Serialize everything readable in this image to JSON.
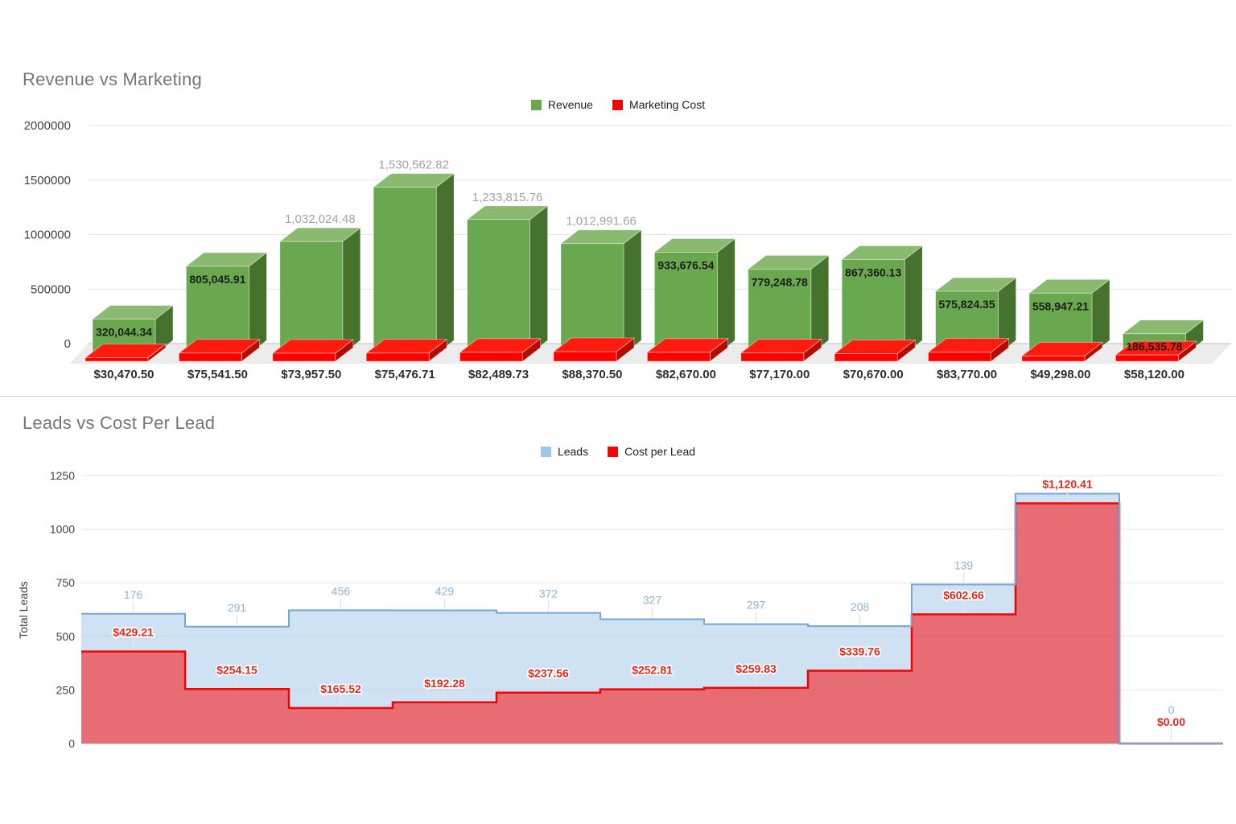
{
  "page_background": "#ffffff",
  "chart_data": [
    {
      "type": "bar",
      "variant": "3d-column",
      "title": "Revenue vs Marketing",
      "legend_position": "top-center",
      "grid": true,
      "ylim": [
        0,
        2000000
      ],
      "y_ticks": [
        "2000000",
        "1500000",
        "1000000",
        "500000",
        "0"
      ],
      "categories": [
        "$30,470.50",
        "$75,541.50",
        "$73,957.50",
        "$75,476.71",
        "$82,489.73",
        "$88,370.50",
        "$82,670.00",
        "$77,170.00",
        "$70,670.00",
        "$83,770.00",
        "$49,298.00",
        "$58,120.00"
      ],
      "series": [
        {
          "name": "Revenue",
          "color": "#6aa84f",
          "color_top": "#8ab970",
          "color_side": "#45722d",
          "values": [
            320044.34,
            805045.91,
            1032024.48,
            1530562.82,
            1233815.76,
            1012991.66,
            933676.54,
            779248.78,
            867360.13,
            575824.35,
            558947.21,
            186535.78
          ],
          "labels": [
            "320,044.34",
            "805,045.91",
            "1,032,024.48",
            "1,530,562.82",
            "1,233,815.76",
            "1,012,991.66",
            "933,676.54",
            "779,248.78",
            "867,360.13",
            "575,824.35",
            "558,947.21",
            "186,535.78"
          ]
        },
        {
          "name": "Marketing Cost",
          "color": "#ff0000",
          "color_top": "#ff1c0e",
          "color_side": "#b50c00",
          "values": [
            30470.5,
            75541.5,
            73957.5,
            75476.71,
            82489.73,
            88370.5,
            82670.0,
            77170.0,
            70670.0,
            83770.0,
            49298.0,
            58120.0
          ]
        }
      ]
    },
    {
      "type": "area",
      "variant": "stacked-step",
      "title": "Leads vs Cost Per Lead",
      "ylabel": "Total Leads",
      "legend_position": "top-center",
      "grid": true,
      "ylim": [
        0,
        1250
      ],
      "y_ticks": [
        "1250",
        "1000",
        "750",
        "500",
        "250",
        "0"
      ],
      "series": [
        {
          "name": "Leads",
          "color": "#9fc5e8",
          "line_color": "#76a5d6",
          "label_color": "#8fb1d6",
          "values": [
            176,
            291,
            456,
            429,
            372,
            327,
            297,
            208,
            139,
            45,
            0
          ],
          "labels": [
            "176",
            "291",
            "456",
            "429",
            "372",
            "327",
            "297",
            "208",
            "139",
            "",
            "0"
          ]
        },
        {
          "name": "Cost per Lead",
          "color": "#ff0000",
          "line_color": "#f60000",
          "label_color": "#e0291d",
          "values": [
            429.21,
            254.15,
            165.52,
            192.28,
            237.56,
            252.81,
            259.83,
            339.76,
            602.66,
            1120.41,
            0
          ],
          "labels": [
            "$429.21",
            "$254.15",
            "$165.52",
            "$192.28",
            "$237.56",
            "$252.81",
            "$259.83",
            "$339.76",
            "$602.66",
            "$1,120.41",
            "$0.00"
          ]
        }
      ]
    }
  ]
}
